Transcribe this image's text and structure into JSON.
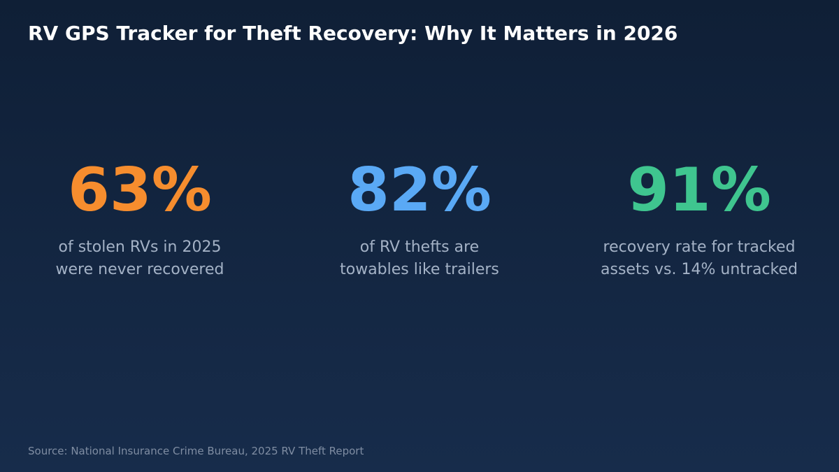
{
  "title": "RV GPS Tracker for Theft Recovery: Why It Matters in 2026",
  "stats": [
    {
      "value": "63%",
      "caption_line1": "of stolen RVs in 2025",
      "caption_line2": "were never recovered",
      "color": "#f68d2e"
    },
    {
      "value": "82%",
      "caption_line1": "of RV thefts are",
      "caption_line2": "towables like trailers",
      "color": "#5aa9f5"
    },
    {
      "value": "91%",
      "caption_line1": "recovery rate for tracked",
      "caption_line2": "assets vs. 14% untracked",
      "color": "#3fc58f"
    }
  ],
  "source": "Source: National Insurance Crime Bureau, 2025 RV Theft Report"
}
